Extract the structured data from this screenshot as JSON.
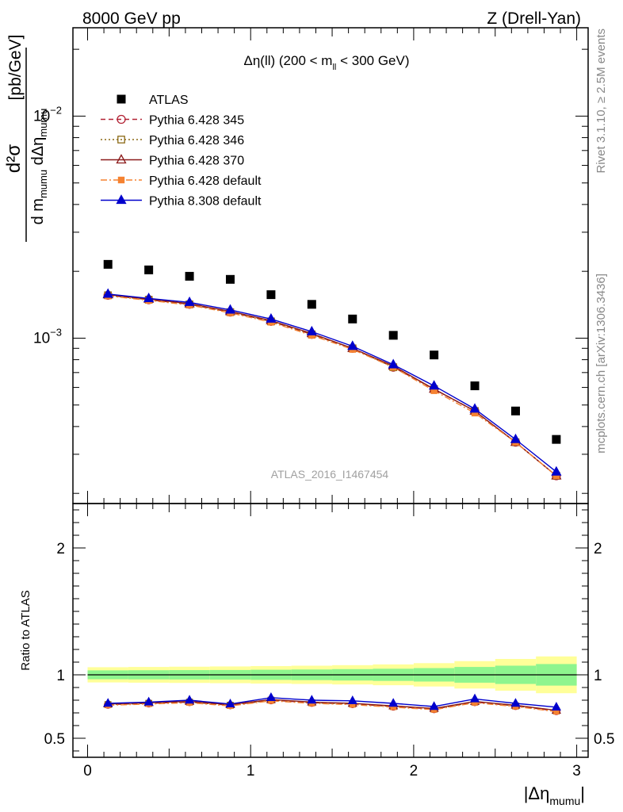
{
  "header": {
    "energy_label": "8000 GeV pp",
    "process_label": "Z (Drell-Yan)"
  },
  "side_labels": {
    "rivet": "Rivet 3.1.10, ≥ 2.5M events",
    "mcplots": "mcplots.cern.ch [arXiv:1306.3436]"
  },
  "chart_data": [
    {
      "type": "scatter",
      "panel": "main",
      "title": "Δη(ll) (200 < m_ll < 300 GeV)",
      "title_parts": {
        "main": "Δη(ll) (200 < m",
        "sub": "ll",
        "tail": " < 300 GeV)"
      },
      "watermark": "ATLAS_2016_I1467454",
      "ylabel": "d²σ / d m_mumu dΔη_mumu [pb/GeV]",
      "ylabel_parts": {
        "num": "d²σ",
        "den_a": "d m",
        "den_sub1": "mumu",
        "den_b": " dΔη",
        "den_sub2": "mumu",
        "unit": "[pb/GeV]"
      },
      "yscale": "log",
      "ylim": [
        0.00018,
        0.025
      ],
      "xlim": [
        -0.09,
        3.07
      ],
      "ytick_labels": [
        {
          "value": 0.01,
          "base": "10",
          "exp": "−2"
        },
        {
          "value": 0.001,
          "base": "10",
          "exp": "−3"
        }
      ],
      "legend_position": "top-left",
      "x": [
        0.125,
        0.375,
        0.625,
        0.875,
        1.125,
        1.375,
        1.625,
        1.875,
        2.125,
        2.375,
        2.625,
        2.875
      ],
      "series": [
        {
          "name": "ATLAS",
          "marker": "square",
          "color": "#000000",
          "line": "none",
          "values": [
            0.00215,
            0.00203,
            0.0019,
            0.00184,
            0.00157,
            0.00142,
            0.00122,
            0.00103,
            0.00084,
            0.00061,
            0.00047,
            0.00035
          ]
        },
        {
          "name": "Pythia 6.428 345",
          "marker": "circle-open",
          "color": "#b22234",
          "line": "dashed",
          "values": [
            0.00156,
            0.00149,
            0.00142,
            0.00131,
            0.00119,
            0.00104,
            0.0009,
            0.00074,
            0.00059,
            0.00047,
            0.00034,
            0.00024
          ]
        },
        {
          "name": "Pythia 6.428 346",
          "marker": "square-open",
          "color": "#8b6914",
          "line": "dotted",
          "values": [
            0.00156,
            0.00149,
            0.00142,
            0.00131,
            0.00119,
            0.00104,
            0.0009,
            0.00074,
            0.00059,
            0.00047,
            0.00034,
            0.00024
          ]
        },
        {
          "name": "Pythia 6.428 370",
          "marker": "triangle-open",
          "color": "#8b1a1a",
          "line": "solid",
          "values": [
            0.00157,
            0.0015,
            0.00143,
            0.00132,
            0.0012,
            0.00105,
            0.0009,
            0.00075,
            0.00059,
            0.00047,
            0.00034,
            0.00024
          ]
        },
        {
          "name": "Pythia 6.428 default",
          "marker": "square-filled",
          "color": "#f58231",
          "line": "dashdot",
          "values": [
            0.00155,
            0.00148,
            0.00141,
            0.0013,
            0.00118,
            0.00103,
            0.00089,
            0.00074,
            0.00058,
            0.00046,
            0.00034,
            0.00024
          ]
        },
        {
          "name": "Pythia 8.308 default",
          "marker": "triangle-filled",
          "color": "#0000cc",
          "line": "solid",
          "values": [
            0.00158,
            0.00151,
            0.00145,
            0.00134,
            0.00122,
            0.00107,
            0.00092,
            0.00076,
            0.00061,
            0.00048,
            0.00035,
            0.00025
          ]
        }
      ]
    },
    {
      "type": "line",
      "panel": "ratio",
      "ylabel": "Ratio to ATLAS",
      "xlabel": "|Δη_mumu|",
      "xlabel_parts": {
        "main": "|Δη",
        "sub": "mumu",
        "tail": "|"
      },
      "xlim": [
        -0.09,
        3.07
      ],
      "ylim": [
        0.35,
        2.35
      ],
      "xticks": [
        0,
        1,
        2,
        3
      ],
      "xtick_labels": [
        "0",
        "1",
        "2",
        "3"
      ],
      "yticks": [
        0.5,
        1,
        2
      ],
      "ytick_labels": [
        "0.5",
        "1",
        "2"
      ],
      "band_edges": [
        0,
        0.25,
        0.5,
        0.75,
        1.0,
        1.25,
        1.5,
        1.75,
        2.0,
        2.25,
        2.5,
        2.75,
        3.0
      ],
      "band_inner": [
        0.035,
        0.036,
        0.037,
        0.038,
        0.04,
        0.042,
        0.045,
        0.048,
        0.053,
        0.062,
        0.072,
        0.085
      ],
      "band_outer": [
        0.06,
        0.062,
        0.064,
        0.066,
        0.069,
        0.072,
        0.076,
        0.082,
        0.092,
        0.108,
        0.125,
        0.145
      ],
      "band_colors": {
        "inner": "#8ef58e",
        "outer": "#ffff99"
      },
      "x": [
        0.125,
        0.375,
        0.625,
        0.875,
        1.125,
        1.375,
        1.625,
        1.875,
        2.125,
        2.375,
        2.625,
        2.875
      ],
      "series": [
        {
          "name": "Pythia 6.428 345",
          "color": "#b22234",
          "line": "dashed",
          "marker": "circle-open",
          "values": [
            0.765,
            0.775,
            0.785,
            0.76,
            0.8,
            0.78,
            0.77,
            0.75,
            0.73,
            0.785,
            0.755,
            0.715
          ]
        },
        {
          "name": "Pythia 6.428 346",
          "color": "#8b6914",
          "line": "dotted",
          "marker": "square-open",
          "values": [
            0.765,
            0.775,
            0.785,
            0.76,
            0.8,
            0.78,
            0.77,
            0.75,
            0.73,
            0.785,
            0.755,
            0.715
          ]
        },
        {
          "name": "Pythia 6.428 370",
          "color": "#8b1a1a",
          "line": "solid",
          "marker": "triangle-open",
          "values": [
            0.77,
            0.78,
            0.79,
            0.765,
            0.805,
            0.785,
            0.775,
            0.755,
            0.735,
            0.79,
            0.76,
            0.72
          ]
        },
        {
          "name": "Pythia 6.428 default",
          "color": "#f58231",
          "line": "dashdot",
          "marker": "square-filled",
          "values": [
            0.76,
            0.77,
            0.78,
            0.755,
            0.795,
            0.775,
            0.765,
            0.745,
            0.725,
            0.78,
            0.75,
            0.71
          ]
        },
        {
          "name": "Pythia 8.308 default",
          "color": "#0000cc",
          "line": "solid",
          "marker": "triangle-filled",
          "values": [
            0.775,
            0.785,
            0.8,
            0.77,
            0.82,
            0.8,
            0.795,
            0.775,
            0.75,
            0.81,
            0.775,
            0.745
          ]
        }
      ]
    }
  ]
}
